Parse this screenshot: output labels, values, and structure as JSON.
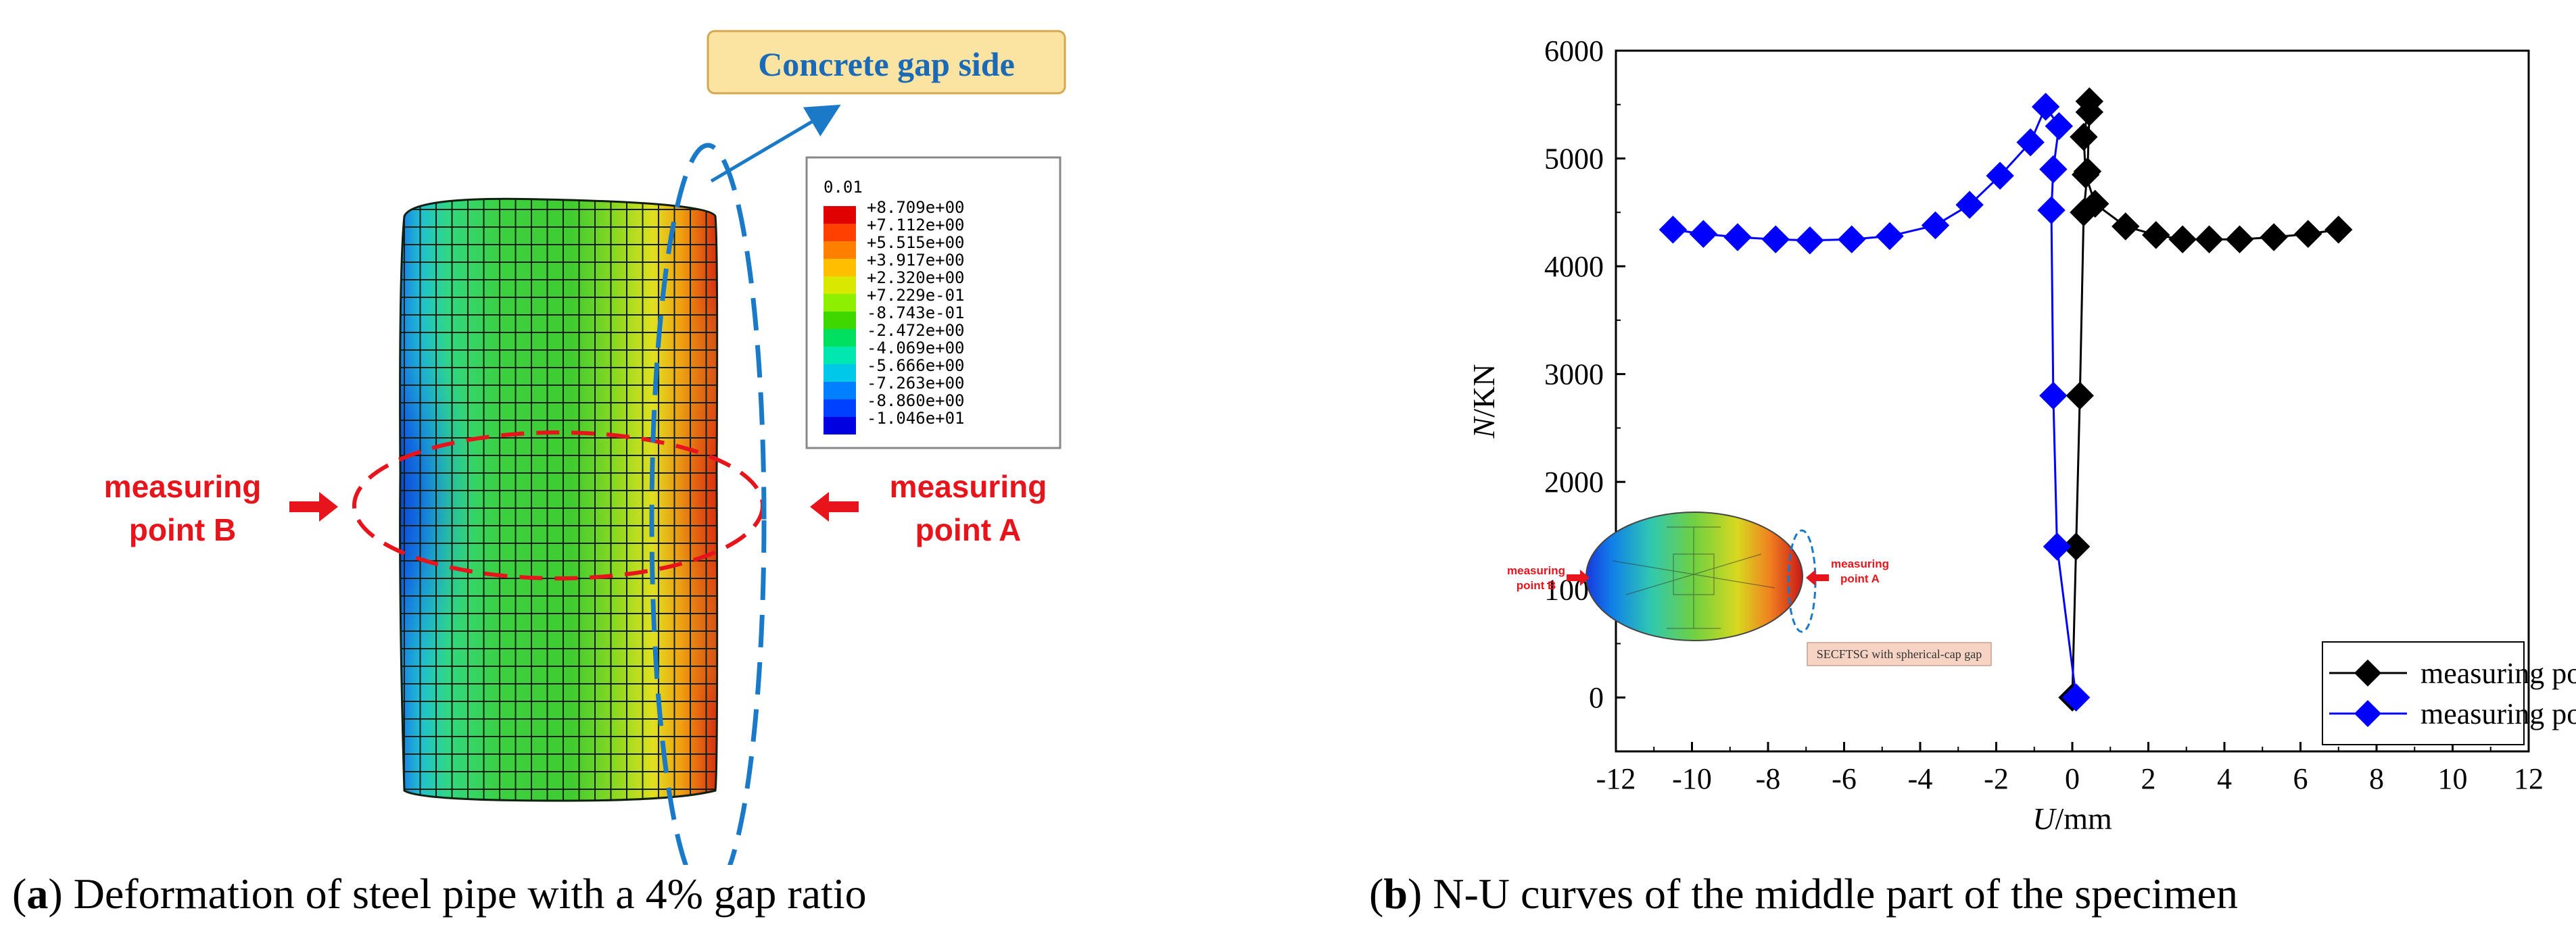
{
  "panel_a": {
    "caption_letter": "a",
    "caption_text": ") Deformation of steel pipe with a 4% gap ratio",
    "callout_label": "Concrete gap side",
    "left_label_line1": "measuring",
    "left_label_line2": "point B",
    "right_label_line1": "measuring",
    "right_label_line2": "point A",
    "legend_header": "0.01",
    "legend_values": [
      "+8.709e+00",
      "+7.112e+00",
      "+5.515e+00",
      "+3.917e+00",
      "+2.320e+00",
      "+7.229e-01",
      "-8.743e-01",
      "-2.472e+00",
      "-4.069e+00",
      "-5.666e+00",
      "-7.263e+00",
      "-8.860e+00",
      "-1.046e+01"
    ],
    "legend_colors": [
      "#e00000",
      "#ff4000",
      "#ff8000",
      "#ffbf00",
      "#d8e800",
      "#8ef000",
      "#3ed800",
      "#00e060",
      "#00e8b0",
      "#00c8e8",
      "#0080ff",
      "#0040ff",
      "#0000e0"
    ]
  },
  "panel_b": {
    "caption_letter": "b",
    "caption_text": ") N-U curves of the middle part of the specimen",
    "inset_label_b_1": "measuring",
    "inset_label_b_2": "point B",
    "inset_label_a_1": "measuring",
    "inset_label_a_2": "point A",
    "inset_caption": "SECFTSG with spherical-cap gap"
  },
  "chart_data": {
    "type": "line",
    "xlabel_italic": "U",
    "xlabel_unit": "/mm",
    "ylabel_italic": "N",
    "ylabel_unit": "/KN",
    "xlim": [
      -12,
      12
    ],
    "ylim": [
      -500,
      6000
    ],
    "xticks": [
      -12,
      -10,
      -8,
      -6,
      -4,
      -2,
      0,
      2,
      4,
      6,
      8,
      10,
      12
    ],
    "yticks": [
      0,
      1000,
      2000,
      3000,
      4000,
      5000,
      6000
    ],
    "legend_position": "bottom-right",
    "series": [
      {
        "name": "measuring point A",
        "color": "#000000",
        "x": [
          0,
          0.1,
          0.2,
          0.3,
          0.4,
          0.45,
          0.45,
          0.3,
          0.35,
          0.6,
          1.4,
          2.2,
          2.9,
          3.6,
          4.4,
          5.3,
          6.2,
          7.0
        ],
        "y": [
          0,
          1400,
          2800,
          4500,
          4880,
          5430,
          5530,
          5200,
          4850,
          4580,
          4370,
          4290,
          4250,
          4250,
          4250,
          4270,
          4300,
          4340
        ]
      },
      {
        "name": "measuring point B",
        "color": "#0000ff",
        "x": [
          0.1,
          -0.4,
          -0.5,
          -0.55,
          -0.5,
          -0.35,
          -0.7,
          -1.1,
          -1.9,
          -2.7,
          -3.6,
          -4.8,
          -5.8,
          -6.9,
          -7.8,
          -8.8,
          -9.7,
          -10.5
        ],
        "y": [
          0,
          1400,
          2800,
          4520,
          4900,
          5300,
          5480,
          5150,
          4840,
          4570,
          4380,
          4280,
          4250,
          4240,
          4250,
          4270,
          4300,
          4340
        ]
      }
    ]
  }
}
